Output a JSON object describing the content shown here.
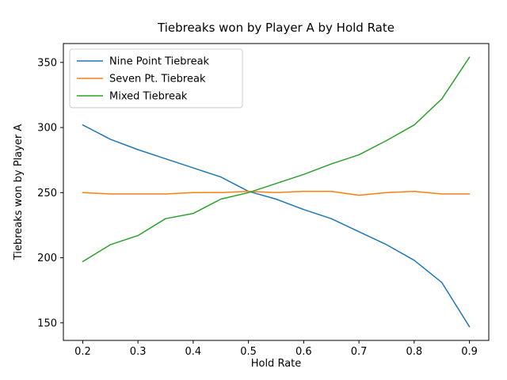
{
  "chart_data": {
    "type": "line",
    "title": "Tiebreaks won by Player A by Hold Rate",
    "xlabel": "Hold Rate",
    "ylabel": "Tiebreaks won by Player A",
    "x": [
      0.2,
      0.25,
      0.3,
      0.35,
      0.4,
      0.45,
      0.5,
      0.55,
      0.6,
      0.65,
      0.7,
      0.75,
      0.8,
      0.85,
      0.9
    ],
    "series": [
      {
        "name": "Nine Point Tiebreak",
        "color": "#1f77b4",
        "values": [
          302,
          291,
          283,
          276,
          269,
          262,
          251,
          245,
          237,
          230,
          220,
          210,
          198,
          181,
          147
        ]
      },
      {
        "name": "Seven Pt. Tiebreak",
        "color": "#ff7f0e",
        "values": [
          250,
          249,
          249,
          249,
          250,
          250,
          251,
          250,
          251,
          251,
          248,
          250,
          251,
          249,
          249
        ]
      },
      {
        "name": "Mixed Tiebreak",
        "color": "#2ca02c",
        "values": [
          197,
          210,
          217,
          230,
          234,
          245,
          250,
          257,
          264,
          272,
          279,
          290,
          302,
          322,
          354
        ]
      }
    ],
    "xlim": [
      0.165,
      0.935
    ],
    "ylim": [
      136.5,
      364.5
    ],
    "xticks": [
      0.2,
      0.3,
      0.4,
      0.5,
      0.6,
      0.7,
      0.8,
      0.9
    ],
    "xtick_labels": [
      "0.2",
      "0.3",
      "0.4",
      "0.5",
      "0.6",
      "0.7",
      "0.8",
      "0.9"
    ],
    "yticks": [
      150,
      200,
      250,
      300,
      350
    ],
    "ytick_labels": [
      "150",
      "200",
      "250",
      "300",
      "350"
    ],
    "legend_position": "upper left",
    "grid": false
  }
}
